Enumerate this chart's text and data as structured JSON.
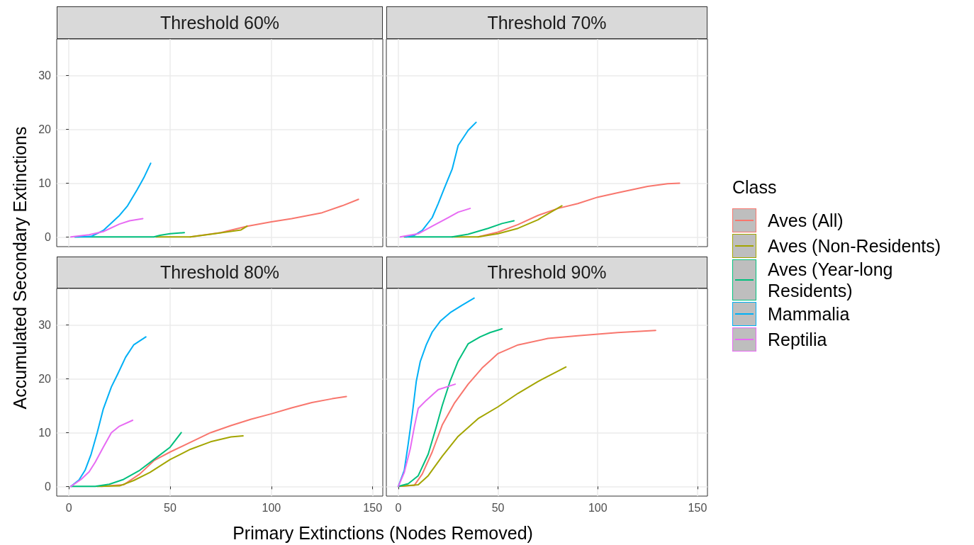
{
  "chart_data": [
    {
      "type": "line",
      "title": "Threshold 60%",
      "xlabel": "Primary Extinctions (Nodes Removed)",
      "ylabel": "Accumulated Secondary Extinctions",
      "legend_title": "Class",
      "legend": "right",
      "grid": true,
      "tick_labels": "y",
      "xlim": [
        -6,
        155
      ],
      "xticks": [
        0,
        50,
        100,
        150
      ],
      "ylim": [
        -1.8,
        36.8
      ],
      "yticks": [
        0,
        10,
        20,
        30
      ],
      "series": [
        {
          "name": "Aves (All)",
          "color": "#f8766d",
          "x": [
            60,
            75,
            88,
            100,
            110,
            125,
            135,
            143
          ],
          "values": [
            0,
            0.8,
            2.0,
            2.8,
            3.4,
            4.5,
            5.8,
            7.0
          ]
        },
        {
          "name": "Aves (Non-Residents)",
          "color": "#a3a500",
          "x": [
            43,
            60,
            70,
            85,
            88
          ],
          "values": [
            0,
            0,
            0.5,
            1.3,
            2.0
          ]
        },
        {
          "name": "Aves (Year-long Residents)",
          "color": "#00bf7d",
          "x": [
            3,
            42,
            45,
            50,
            57
          ],
          "values": [
            0,
            0,
            0.3,
            0.6,
            0.8
          ]
        },
        {
          "name": "Mammalia",
          "color": "#00b0f6",
          "x": [
            3,
            11,
            17,
            25,
            29,
            33.6,
            37,
            40.4
          ],
          "values": [
            0,
            0.1,
            1.2,
            4,
            5.8,
            8.7,
            11,
            13.7
          ]
        },
        {
          "name": "Reptilia",
          "color": "#e76bf3",
          "x": [
            1,
            10,
            17,
            25,
            30,
            36.5
          ],
          "values": [
            0,
            0.4,
            1.0,
            2.4,
            3.0,
            3.4
          ]
        }
      ]
    },
    {
      "type": "line",
      "title": "Threshold 70%",
      "grid": true,
      "tick_labels": false,
      "xlim": [
        -6,
        155
      ],
      "xticks": [
        0,
        50,
        100,
        150
      ],
      "ylim": [
        -1.8,
        36.8
      ],
      "yticks": [
        0,
        10,
        20,
        30
      ],
      "series": [
        {
          "name": "Aves (All)",
          "color": "#f8766d",
          "x": [
            40,
            50,
            60,
            70,
            80,
            90,
            100,
            110,
            125,
            135,
            141
          ],
          "values": [
            0,
            0.9,
            2.3,
            4,
            5.3,
            6.2,
            7.4,
            8.2,
            9.4,
            9.9,
            10
          ]
        },
        {
          "name": "Aves (Non-Residents)",
          "color": "#a3a500",
          "x": [
            27,
            40,
            50,
            60,
            70,
            82
          ],
          "values": [
            0,
            0,
            0.6,
            1.6,
            3.2,
            5.8
          ]
        },
        {
          "name": "Aves (Year-long Residents)",
          "color": "#00bf7d",
          "x": [
            3,
            27,
            35,
            45,
            52,
            58
          ],
          "values": [
            0,
            0,
            0.5,
            1.6,
            2.5,
            3.0
          ]
        },
        {
          "name": "Mammalia",
          "color": "#00b0f6",
          "x": [
            4,
            8,
            12,
            17,
            20,
            23,
            27,
            30,
            35,
            39
          ],
          "values": [
            0,
            0.3,
            1.2,
            3.6,
            6.2,
            9,
            12.6,
            17,
            19.8,
            21.3
          ]
        },
        {
          "name": "Reptilia",
          "color": "#e76bf3",
          "x": [
            1,
            10,
            17,
            25,
            30,
            36
          ],
          "values": [
            0,
            0.6,
            2,
            3.6,
            4.6,
            5.3
          ]
        }
      ]
    },
    {
      "type": "line",
      "title": "Threshold 80%",
      "grid": true,
      "xlim": [
        -6,
        155
      ],
      "xticks": [
        0,
        50,
        100,
        150
      ],
      "ylim": [
        -1.8,
        36.8
      ],
      "yticks": [
        0,
        10,
        20,
        30
      ],
      "series": [
        {
          "name": "Aves (All)",
          "color": "#f8766d",
          "x": [
            16,
            27,
            35,
            42,
            50,
            60,
            70,
            80,
            90,
            100,
            110,
            120,
            130,
            137
          ],
          "values": [
            0,
            0.3,
            2.3,
            4.8,
            6.4,
            8.2,
            10,
            11.3,
            12.5,
            13.5,
            14.6,
            15.6,
            16.3,
            16.7
          ]
        },
        {
          "name": "Aves (Non-Residents)",
          "color": "#a3a500",
          "x": [
            14,
            25,
            32,
            40,
            50,
            60,
            70,
            80,
            86
          ],
          "values": [
            0,
            0.1,
            1.1,
            2.6,
            5,
            6.9,
            8.3,
            9.2,
            9.4
          ]
        },
        {
          "name": "Aves (Year-long Residents)",
          "color": "#00bf7d",
          "x": [
            1,
            13,
            20,
            27,
            35,
            42,
            50,
            55.5
          ],
          "values": [
            0,
            0,
            0.4,
            1.3,
            3,
            5,
            7.3,
            10
          ]
        },
        {
          "name": "Mammalia",
          "color": "#00b0f6",
          "x": [
            1,
            5,
            8,
            11,
            14,
            17,
            21,
            24,
            28,
            32,
            38
          ],
          "values": [
            0,
            1.2,
            3,
            6,
            10,
            14.4,
            18.5,
            20.8,
            24,
            26.3,
            27.8
          ]
        },
        {
          "name": "Reptilia",
          "color": "#e76bf3",
          "x": [
            1,
            6,
            10,
            13,
            17,
            21,
            25,
            31.5
          ],
          "values": [
            0,
            1.3,
            2.7,
            4.5,
            7.3,
            10,
            11.2,
            12.3
          ]
        }
      ]
    },
    {
      "type": "line",
      "title": "Threshold 90%",
      "grid": true,
      "tick_labels": "x",
      "xlim": [
        -6,
        155
      ],
      "xticks": [
        0,
        50,
        100,
        150
      ],
      "ylim": [
        -1.8,
        36.8
      ],
      "yticks": [
        0,
        10,
        20,
        30
      ],
      "series": [
        {
          "name": "Aves (All)",
          "color": "#f8766d",
          "x": [
            0,
            8,
            12,
            17,
            22,
            28,
            35,
            42,
            50,
            60,
            75,
            90,
            110,
            129
          ],
          "values": [
            0,
            0.2,
            2.3,
            6.4,
            11.4,
            15.4,
            19,
            22,
            24.7,
            26.3,
            27.5,
            28,
            28.6,
            29
          ]
        },
        {
          "name": "Aves (Non-Residents)",
          "color": "#a3a500",
          "x": [
            0,
            10,
            15,
            22,
            30,
            40,
            50,
            60,
            70,
            84
          ],
          "values": [
            0,
            0.3,
            2,
            5.6,
            9.3,
            12.6,
            14.8,
            17.3,
            19.5,
            22.2
          ]
        },
        {
          "name": "Aves (Year-long Residents)",
          "color": "#00bf7d",
          "x": [
            0,
            5,
            10,
            15,
            19,
            22,
            26,
            30,
            35,
            41,
            46,
            52
          ],
          "values": [
            0,
            0.5,
            2,
            6,
            11,
            15,
            19.6,
            23.3,
            26.5,
            27.8,
            28.6,
            29.3
          ]
        },
        {
          "name": "Mammalia",
          "color": "#00b0f6",
          "x": [
            0,
            3,
            5,
            7,
            9,
            11,
            14,
            17,
            21,
            26,
            32,
            38
          ],
          "values": [
            0,
            3,
            8,
            13.4,
            19.5,
            23.2,
            26.3,
            28.7,
            30.7,
            32.3,
            33.7,
            35
          ]
        },
        {
          "name": "Reptilia",
          "color": "#e76bf3",
          "x": [
            0,
            3,
            6,
            8,
            10,
            14,
            20,
            28.5
          ],
          "values": [
            0,
            2.6,
            7,
            11,
            14.5,
            16,
            18,
            19
          ]
        }
      ]
    }
  ]
}
